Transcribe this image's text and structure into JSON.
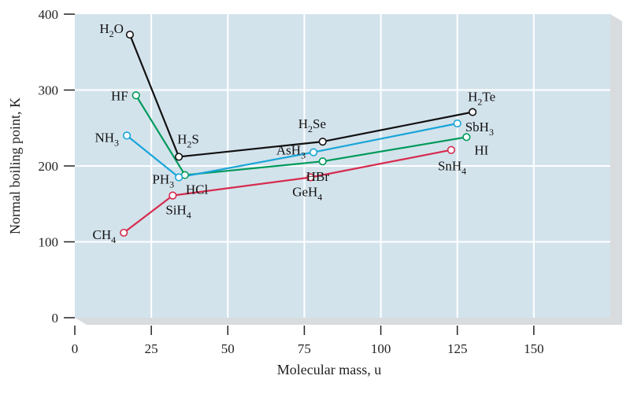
{
  "chart_data": {
    "type": "line",
    "title": "",
    "xlabel": "Molecular mass, u",
    "ylabel": "Normal boiling point, K",
    "xlim": [
      0,
      175
    ],
    "ylim": [
      0,
      400
    ],
    "xticks": [
      "0",
      "25",
      "50",
      "75",
      "100",
      "125",
      "150"
    ],
    "yticks": [
      "0",
      "100",
      "200",
      "300",
      "400"
    ],
    "grid": true,
    "legend": "none",
    "colors": {
      "group16": "#111111",
      "group17": "#009a5a",
      "group15": "#1aa5d8",
      "group14": "#d62b4e",
      "plot_bg": "#d3e3ec",
      "depth": "#d9dcde"
    },
    "series": [
      {
        "color": "#111111",
        "points": [
          {
            "label": "H2O",
            "main": "H",
            "sub": "2",
            "tail": "O",
            "x": 18,
            "y": 373
          },
          {
            "label": "H2S",
            "main": "H",
            "sub": "2",
            "tail": "S",
            "x": 34,
            "y": 212
          },
          {
            "label": "H2Se",
            "main": "H",
            "sub": "2",
            "tail": "Se",
            "x": 81,
            "y": 232
          },
          {
            "label": "H2Te",
            "main": "H",
            "sub": "2",
            "tail": "Te",
            "x": 130,
            "y": 271
          }
        ]
      },
      {
        "color": "#009a5a",
        "points": [
          {
            "label": "HF",
            "main": "HF",
            "sub": "",
            "tail": "",
            "x": 20,
            "y": 293
          },
          {
            "label": "HCl",
            "main": "HCl",
            "sub": "",
            "tail": "",
            "x": 36,
            "y": 188
          },
          {
            "label": "HBr",
            "main": "HBr",
            "sub": "",
            "tail": "",
            "x": 81,
            "y": 206
          },
          {
            "label": "HI",
            "main": "HI",
            "sub": "",
            "tail": "",
            "x": 128,
            "y": 238
          }
        ]
      },
      {
        "color": "#1aa5d8",
        "points": [
          {
            "label": "NH3",
            "main": "NH",
            "sub": "3",
            "tail": "",
            "x": 17,
            "y": 240
          },
          {
            "label": "PH3",
            "main": "PH",
            "sub": "3",
            "tail": "",
            "x": 34,
            "y": 185
          },
          {
            "label": "AsH3",
            "main": "AsH",
            "sub": "3",
            "tail": "",
            "x": 78,
            "y": 218
          },
          {
            "label": "SbH3",
            "main": "SbH",
            "sub": "3",
            "tail": "",
            "x": 125,
            "y": 256
          }
        ]
      },
      {
        "color": "#d62b4e",
        "points": [
          {
            "label": "CH4",
            "main": "CH",
            "sub": "4",
            "tail": "",
            "x": 16,
            "y": 112
          },
          {
            "label": "SiH4",
            "main": "SiH",
            "sub": "4",
            "tail": "",
            "x": 32,
            "y": 161
          },
          {
            "label": "GeH4",
            "main": "GeH",
            "sub": "4",
            "tail": "",
            "x": 77,
            "y": 185
          },
          {
            "label": "SnH4",
            "main": "SnH",
            "sub": "4",
            "tail": "",
            "x": 123,
            "y": 221
          }
        ]
      }
    ]
  }
}
